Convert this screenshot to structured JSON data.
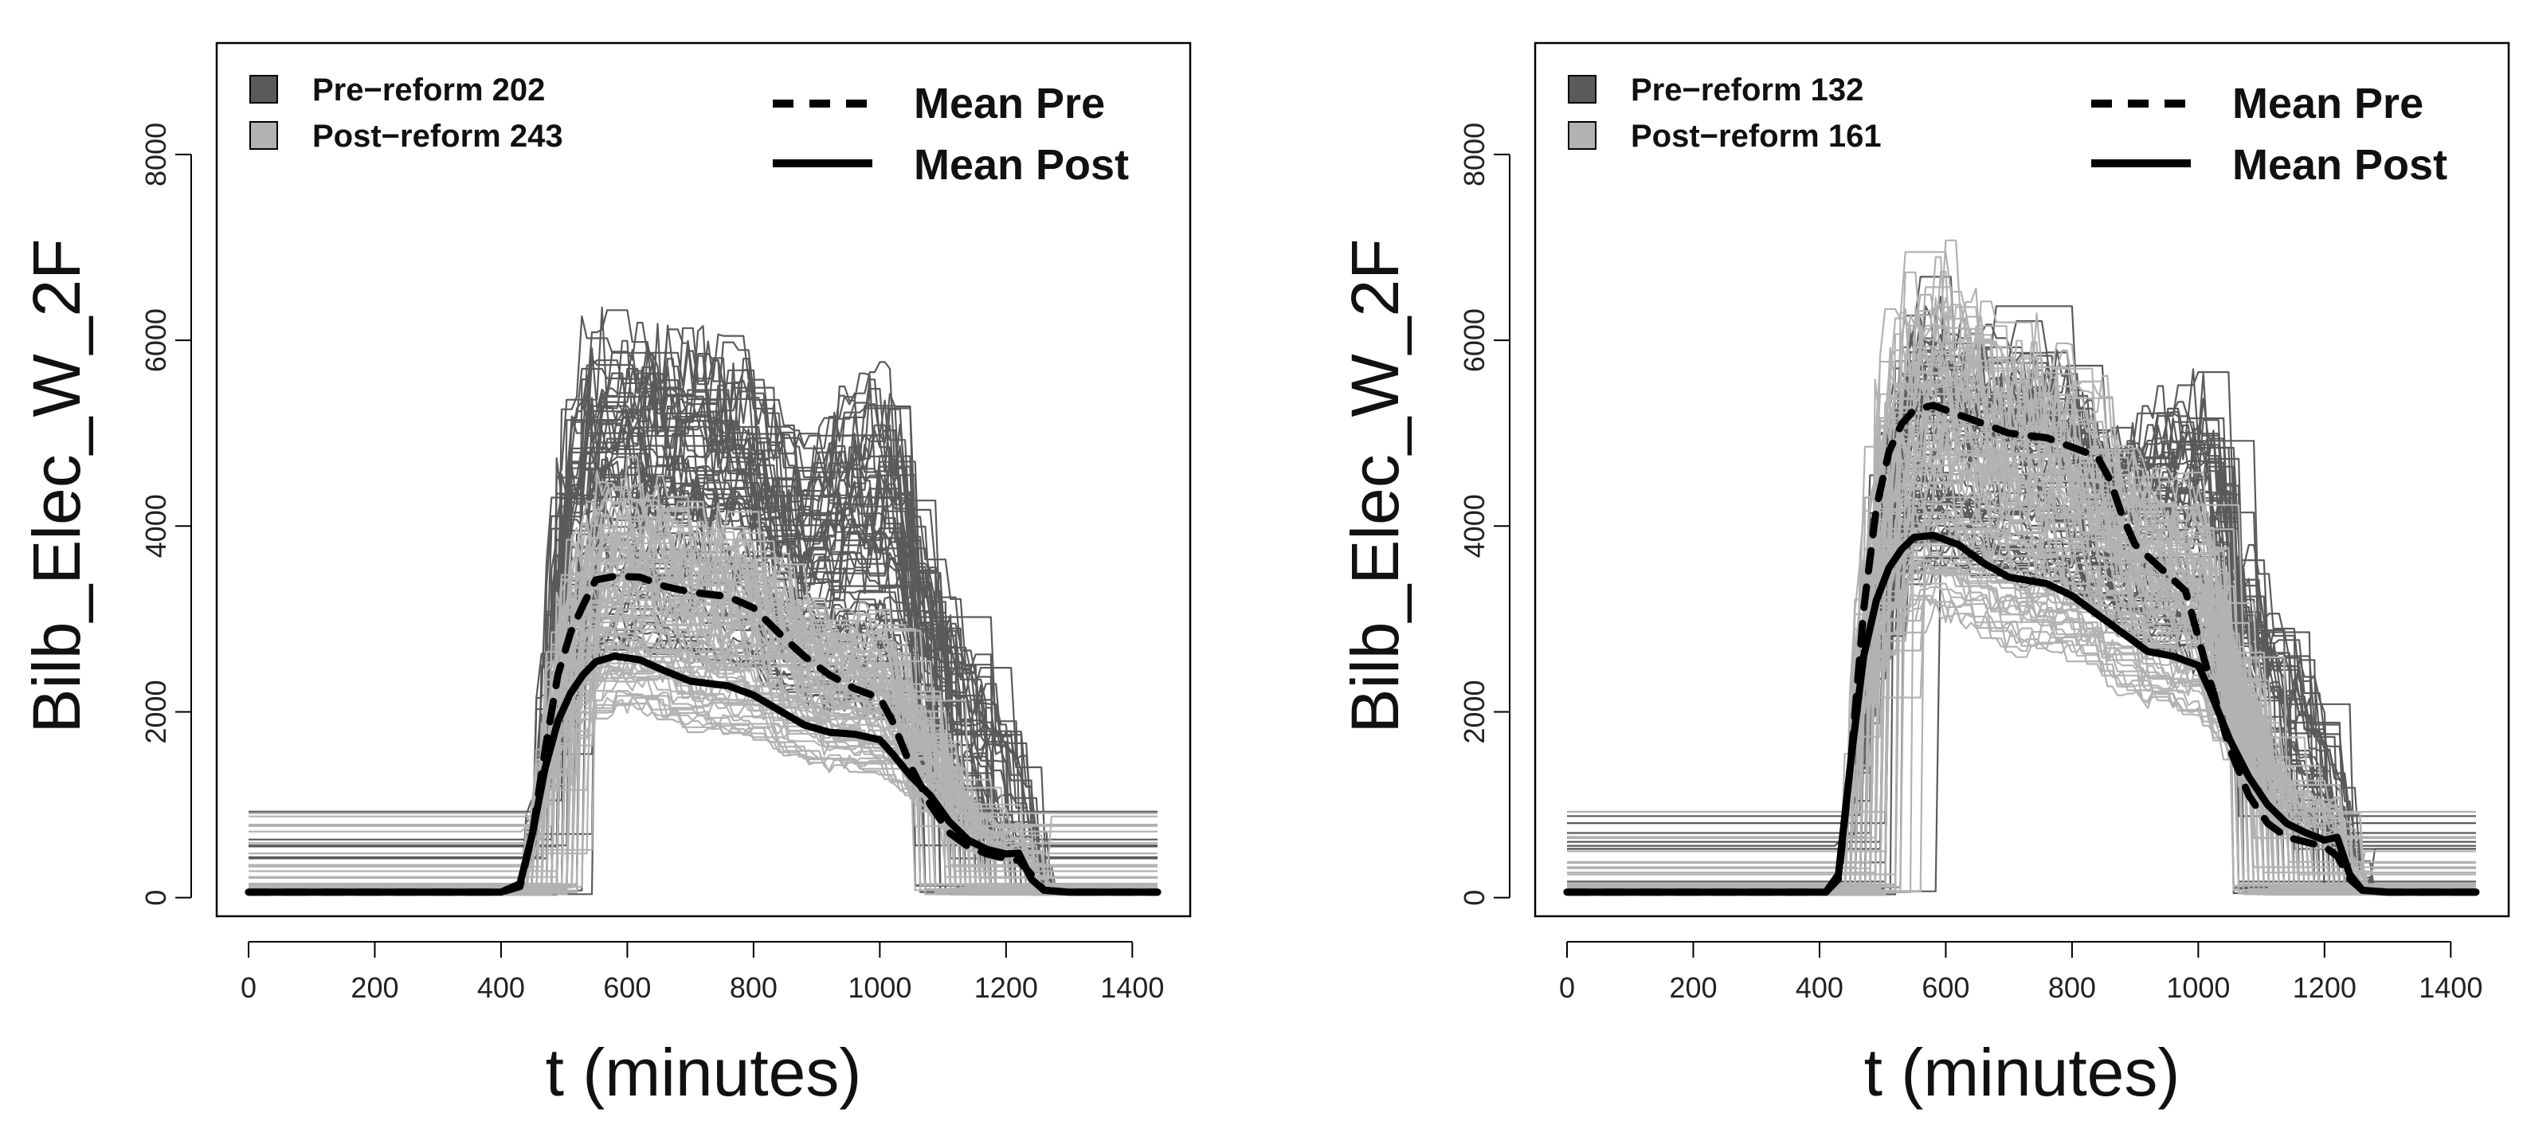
{
  "colors": {
    "pre": "#5a5a5a",
    "post": "#b2b2b2",
    "mean": "#000000"
  },
  "chart_data": [
    {
      "type": "line",
      "panel": "left",
      "xlabel": "t (minutes)",
      "ylabel": "Bilb_Elec_W_2F",
      "xlim": [
        0,
        1440
      ],
      "ylim": [
        -200,
        9200
      ],
      "xticks": [
        "0",
        "200",
        "400",
        "600",
        "800",
        "1000",
        "1200",
        "1400"
      ],
      "yticks": [
        "0",
        "2000",
        "4000",
        "6000",
        "8000"
      ],
      "legend_counts": {
        "pre_label": "Pre−reform 202",
        "post_label": "Post−reform 243"
      },
      "legend_means": {
        "pre_label": "Mean Pre",
        "post_label": "Mean Post"
      },
      "series": [
        {
          "name": "Mean Pre",
          "style": "dashed",
          "x": [
            0,
            400,
            430,
            450,
            470,
            490,
            510,
            530,
            550,
            580,
            620,
            660,
            700,
            760,
            800,
            840,
            880,
            920,
            960,
            1000,
            1020,
            1050,
            1080,
            1110,
            1140,
            1170,
            1200,
            1220,
            1240,
            1260,
            1300,
            1440
          ],
          "y": [
            60,
            60,
            120,
            700,
            1600,
            2400,
            2850,
            3150,
            3420,
            3460,
            3450,
            3350,
            3290,
            3240,
            3120,
            2850,
            2600,
            2400,
            2250,
            2150,
            1900,
            1400,
            1000,
            700,
            550,
            470,
            420,
            400,
            250,
            80,
            60,
            60
          ]
        },
        {
          "name": "Mean Post",
          "style": "solid",
          "x": [
            0,
            400,
            430,
            450,
            470,
            490,
            510,
            530,
            550,
            580,
            620,
            660,
            700,
            760,
            800,
            840,
            880,
            920,
            960,
            1000,
            1020,
            1050,
            1080,
            1110,
            1140,
            1170,
            1200,
            1220,
            1240,
            1260,
            1300,
            1440
          ],
          "y": [
            60,
            60,
            150,
            700,
            1400,
            1900,
            2200,
            2400,
            2540,
            2600,
            2560,
            2440,
            2330,
            2280,
            2180,
            2020,
            1860,
            1780,
            1760,
            1700,
            1550,
            1300,
            1100,
            820,
            620,
            520,
            470,
            480,
            200,
            80,
            60,
            60
          ]
        }
      ]
    },
    {
      "type": "line",
      "panel": "right",
      "xlabel": "t (minutes)",
      "ylabel": "Bilb_Elec_W_2F",
      "xlim": [
        0,
        1440
      ],
      "ylim": [
        -200,
        9200
      ],
      "xticks": [
        "0",
        "200",
        "400",
        "600",
        "800",
        "1000",
        "1200",
        "1400"
      ],
      "yticks": [
        "0",
        "2000",
        "4000",
        "6000",
        "8000"
      ],
      "legend_counts": {
        "pre_label": "Pre−reform 132",
        "post_label": "Post−reform 161"
      },
      "legend_means": {
        "pre_label": "Mean Pre",
        "post_label": "Mean Post"
      },
      "series": [
        {
          "name": "Mean Pre",
          "style": "dashed",
          "x": [
            0,
            410,
            430,
            450,
            470,
            490,
            510,
            530,
            550,
            580,
            620,
            660,
            700,
            760,
            800,
            840,
            860,
            880,
            900,
            940,
            980,
            1000,
            1020,
            1050,
            1080,
            1110,
            1140,
            1170,
            1200,
            1220,
            1240,
            1260,
            1300,
            1440
          ],
          "y": [
            60,
            60,
            200,
            1500,
            3100,
            4200,
            4800,
            5100,
            5250,
            5300,
            5200,
            5100,
            5000,
            4950,
            4850,
            4750,
            4500,
            4100,
            3800,
            3550,
            3300,
            2800,
            2300,
            1600,
            1100,
            800,
            650,
            600,
            550,
            450,
            200,
            80,
            60,
            60
          ]
        },
        {
          "name": "Mean Post",
          "style": "solid",
          "x": [
            0,
            410,
            430,
            450,
            470,
            490,
            510,
            530,
            550,
            580,
            620,
            660,
            700,
            760,
            800,
            840,
            880,
            920,
            960,
            1000,
            1020,
            1050,
            1080,
            1110,
            1140,
            1170,
            1200,
            1220,
            1240,
            1260,
            1300,
            1440
          ],
          "y": [
            60,
            60,
            250,
            1500,
            2600,
            3200,
            3550,
            3750,
            3880,
            3900,
            3800,
            3600,
            3450,
            3380,
            3250,
            3050,
            2850,
            2650,
            2600,
            2500,
            2200,
            1700,
            1300,
            1000,
            800,
            700,
            620,
            650,
            250,
            80,
            60,
            60
          ]
        }
      ]
    }
  ]
}
